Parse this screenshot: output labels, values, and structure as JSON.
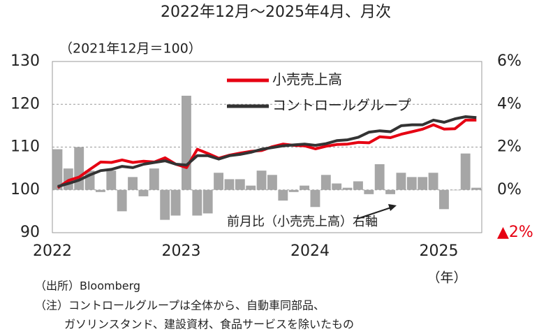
{
  "chart_data": {
    "type": "bar_line",
    "title": "2022年12月～2025年4月、月次",
    "subtitle": "（2021年12月＝100）",
    "xlabel": "（年）",
    "categories": [
      "2022",
      null,
      null,
      null,
      null,
      null,
      null,
      null,
      null,
      null,
      null,
      null,
      "2023",
      null,
      null,
      null,
      null,
      null,
      null,
      null,
      null,
      null,
      null,
      null,
      "2024",
      null,
      null,
      null,
      null,
      null,
      null,
      null,
      null,
      null,
      null,
      null,
      "2025",
      null,
      null,
      null
    ],
    "series": [
      {
        "name": "前月比（小売売上高）右軸",
        "type": "bar",
        "axis": "y2",
        "color": "#a6a6a6",
        "values": [
          1.9,
          1.0,
          2.0,
          0.9,
          -0.1,
          0.9,
          -1.0,
          0.6,
          -0.3,
          1.0,
          -1.4,
          -1.2,
          4.4,
          -1.2,
          -1.1,
          0.8,
          0.5,
          0.5,
          0.2,
          0.9,
          0.7,
          -0.5,
          -0.1,
          0.2,
          -0.8,
          0.7,
          0.3,
          0.1,
          0.4,
          -0.2,
          1.2,
          -0.2,
          0.8,
          0.6,
          0.6,
          0.8,
          -0.9,
          0.0,
          1.7,
          0.1
        ]
      },
      {
        "name": "小売売上高",
        "type": "line",
        "color": "#e60012",
        "values": [
          100.5,
          102.2,
          103.0,
          104.8,
          106.5,
          106.4,
          107.0,
          106.4,
          106.7,
          106.5,
          107.5,
          106.0,
          105.2,
          109.5,
          108.5,
          107.4,
          108.1,
          108.6,
          109.0,
          109.2,
          110.1,
          110.7,
          110.4,
          110.3,
          109.6,
          110.2,
          110.6,
          110.7,
          111.1,
          111.0,
          112.4,
          112.2,
          113.0,
          113.6,
          114.2,
          115.2,
          114.2,
          114.3,
          116.3,
          116.3
        ]
      },
      {
        "name": "コントロールグループ",
        "type": "line",
        "color": "#333333",
        "values": [
          100.8,
          101.5,
          102.3,
          103.5,
          104.5,
          104.8,
          105.5,
          105.2,
          106.0,
          106.4,
          106.8,
          106.0,
          105.8,
          108.0,
          108.0,
          107.2,
          108.0,
          108.3,
          108.8,
          109.5,
          109.9,
          110.3,
          110.5,
          110.7,
          110.4,
          110.8,
          111.5,
          111.7,
          112.3,
          113.5,
          113.8,
          113.6,
          115.0,
          115.2,
          115.2,
          116.3,
          115.8,
          116.6,
          117.1,
          116.9
        ]
      }
    ],
    "ylim": [
      90,
      130
    ],
    "yticks": [
      90,
      100,
      110,
      120,
      130
    ],
    "y2lim": [
      -2,
      6
    ],
    "y2ticks": [
      {
        "value": -2,
        "label": "▲2%"
      },
      {
        "value": 0,
        "label": "0%"
      },
      {
        "value": 2,
        "label": "2%"
      },
      {
        "value": 4,
        "label": "4%"
      },
      {
        "value": 6,
        "label": "6%"
      }
    ],
    "y2tick_negative_color": "#e60012",
    "grid": true
  },
  "notes": [
    "（出所）Bloomberg",
    "（注）コントロールグループは全体から、自動車同部品、",
    "ガソリンスタンド、建設資材、食品サービスを除いたもの"
  ]
}
